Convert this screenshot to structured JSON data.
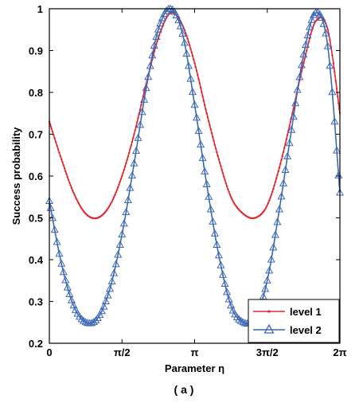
{
  "chart_data": {
    "type": "line",
    "title": "",
    "xlabel": "Parameter η",
    "ylabel": "Success probability",
    "caption": "( a )",
    "xlim": [
      0,
      6.283185307
    ],
    "ylim": [
      0.2,
      1.0
    ],
    "x_ticks": [
      {
        "value": 0,
        "label": "0"
      },
      {
        "value": 1.570796327,
        "label": "π/2"
      },
      {
        "value": 3.141592654,
        "label": "π"
      },
      {
        "value": 4.71238898,
        "label": "3π/2"
      },
      {
        "value": 6.283185307,
        "label": "2π"
      }
    ],
    "y_ticks": [
      0.2,
      0.3,
      0.4,
      0.5,
      0.6,
      0.7,
      0.8,
      0.9,
      1.0
    ],
    "grid": false,
    "legend_position": "bottom-right",
    "series": [
      {
        "name": "level 1",
        "color": "#e0262e",
        "marker": "dot",
        "x": [
          0,
          0.262,
          0.524,
          0.785,
          1.047,
          1.309,
          1.571,
          1.833,
          2.094,
          2.356,
          2.618,
          2.88,
          3.142,
          3.403,
          3.665,
          3.927,
          4.189,
          4.451,
          4.712,
          4.974,
          5.236,
          5.498,
          5.76,
          6.021,
          6.283
        ],
        "values": [
          0.73,
          0.64,
          0.56,
          0.51,
          0.5,
          0.53,
          0.6,
          0.7,
          0.82,
          0.93,
          0.99,
          0.96,
          0.87,
          0.75,
          0.64,
          0.55,
          0.51,
          0.5,
          0.53,
          0.62,
          0.74,
          0.87,
          0.97,
          0.95,
          0.75
        ]
      },
      {
        "name": "level 2",
        "color": "#3a67b8",
        "marker": "triangle",
        "x": [
          0,
          0.262,
          0.524,
          0.785,
          1.047,
          1.309,
          1.571,
          1.833,
          2.094,
          2.356,
          2.618,
          2.88,
          3.142,
          3.403,
          3.665,
          3.927,
          4.189,
          4.451,
          4.712,
          4.974,
          5.236,
          5.498,
          5.76,
          6.021,
          6.283
        ],
        "values": [
          0.54,
          0.39,
          0.29,
          0.25,
          0.26,
          0.33,
          0.46,
          0.63,
          0.81,
          0.95,
          1.0,
          0.94,
          0.77,
          0.58,
          0.41,
          0.29,
          0.25,
          0.26,
          0.35,
          0.52,
          0.71,
          0.89,
          0.99,
          0.91,
          0.56
        ]
      }
    ]
  }
}
